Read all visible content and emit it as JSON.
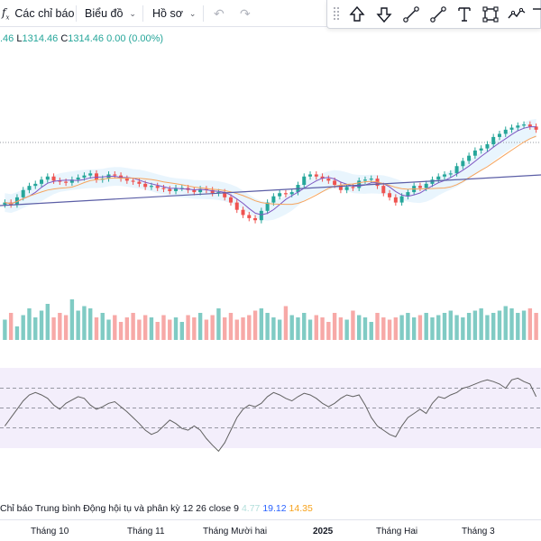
{
  "toolbar": {
    "indicators_icon": "fx-icon",
    "indicators_label": "Các chỉ báo",
    "chart_type_label": "Biểu đồ",
    "profile_label": "Hồ sơ",
    "undo_icon": "undo-icon",
    "redo_icon": "redo-icon"
  },
  "drawing_tools": [
    {
      "name": "arrow-up-icon"
    },
    {
      "name": "arrow-down-icon"
    },
    {
      "name": "trend-angle-icon"
    },
    {
      "name": "trend-line-icon"
    },
    {
      "name": "text-icon"
    },
    {
      "name": "rectangle-icon"
    },
    {
      "name": "path-icon"
    },
    {
      "name": "more-icon"
    }
  ],
  "ohlc_legend": {
    "open_tail": ".46",
    "low_label": "L",
    "low_value": "1314.46",
    "close_label": "C",
    "close_value": "1314.46",
    "change": "0.00 (0.00%)"
  },
  "indicator_legend": {
    "title": "Chỉ báo Trung bình Động hội tụ và phân kỳ",
    "params": "12 26 close 9",
    "value1": "4.77",
    "value2": "19.12",
    "value3": "14.35"
  },
  "time_axis": [
    "Tháng 10",
    "Tháng 11",
    "Tháng Mười hai",
    "2025",
    "Tháng Hai",
    "Tháng 3"
  ],
  "colors": {
    "up": "#26a69a",
    "down": "#ef5350",
    "ma_fast": "#7e57c2",
    "ma_slow": "#f6a45d",
    "ma_long": "#5b5ea6",
    "band": "#e3f2fd",
    "rsi_band": "#f3eefb",
    "rsi_line": "#616161"
  },
  "chart_data": {
    "type": "candlestick",
    "note_series": "Price candles with moving averages, volume histogram and oscillator; x axis labels shown in time_axis",
    "price_closes": [
      1270,
      1268,
      1275,
      1282,
      1286,
      1288,
      1292,
      1295,
      1291,
      1290,
      1289,
      1292,
      1294,
      1296,
      1298,
      1292,
      1293,
      1297,
      1296,
      1293,
      1291,
      1290,
      1288,
      1285,
      1286,
      1284,
      1283,
      1281,
      1284,
      1284,
      1282,
      1280,
      1283,
      1282,
      1279,
      1280,
      1275,
      1270,
      1263,
      1258,
      1255,
      1253,
      1262,
      1270,
      1276,
      1279,
      1278,
      1280,
      1287,
      1295,
      1297,
      1295,
      1293,
      1291,
      1287,
      1282,
      1285,
      1284,
      1291,
      1292,
      1293,
      1286,
      1279,
      1275,
      1270,
      1276,
      1280,
      1286,
      1284,
      1288,
      1292,
      1295,
      1297,
      1298,
      1305,
      1310,
      1315,
      1320,
      1322,
      1326,
      1333,
      1336,
      1340,
      1342,
      1344,
      1345,
      1343,
      1340
    ],
    "volume_relative": [
      0.45,
      0.6,
      0.3,
      0.55,
      0.7,
      0.5,
      0.65,
      0.8,
      0.5,
      0.6,
      0.55,
      0.9,
      0.65,
      0.75,
      0.7,
      0.5,
      0.6,
      0.45,
      0.55,
      0.4,
      0.5,
      0.6,
      0.45,
      0.55,
      0.5,
      0.4,
      0.55,
      0.45,
      0.5,
      0.4,
      0.55,
      0.5,
      0.6,
      0.45,
      0.55,
      0.7,
      0.5,
      0.6,
      0.45,
      0.5,
      0.55,
      0.65,
      0.7,
      0.6,
      0.5,
      0.45,
      0.75,
      0.55,
      0.5,
      0.6,
      0.45,
      0.55,
      0.5,
      0.4,
      0.6,
      0.5,
      0.45,
      0.65,
      0.55,
      0.5,
      0.4,
      0.6,
      0.5,
      0.45,
      0.5,
      0.55,
      0.6,
      0.5,
      0.55,
      0.6,
      0.5,
      0.55,
      0.6,
      0.65,
      0.55,
      0.5,
      0.6,
      0.65,
      0.7,
      0.55,
      0.6,
      0.65,
      0.75,
      0.7,
      0.6,
      0.65,
      0.7,
      0.6
    ],
    "oscillator": [
      0.35,
      0.45,
      0.55,
      0.65,
      0.72,
      0.75,
      0.72,
      0.68,
      0.6,
      0.55,
      0.62,
      0.66,
      0.7,
      0.68,
      0.6,
      0.55,
      0.58,
      0.62,
      0.64,
      0.58,
      0.52,
      0.45,
      0.38,
      0.3,
      0.25,
      0.28,
      0.35,
      0.42,
      0.38,
      0.32,
      0.3,
      0.35,
      0.3,
      0.2,
      0.12,
      0.05,
      0.15,
      0.3,
      0.45,
      0.55,
      0.6,
      0.58,
      0.62,
      0.7,
      0.75,
      0.72,
      0.68,
      0.65,
      0.7,
      0.74,
      0.72,
      0.68,
      0.62,
      0.58,
      0.62,
      0.68,
      0.72,
      0.7,
      0.72,
      0.6,
      0.45,
      0.35,
      0.3,
      0.25,
      0.22,
      0.35,
      0.45,
      0.5,
      0.55,
      0.5,
      0.62,
      0.7,
      0.68,
      0.72,
      0.75,
      0.8,
      0.82,
      0.85,
      0.88,
      0.9,
      0.88,
      0.85,
      0.8,
      0.9,
      0.92,
      0.88,
      0.85,
      0.7
    ],
    "oscillator_levels": [
      0.85,
      0.5,
      0.15
    ]
  }
}
